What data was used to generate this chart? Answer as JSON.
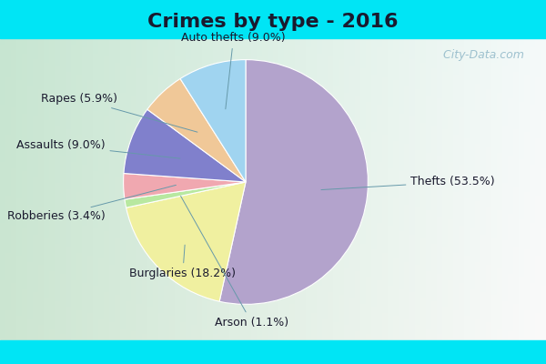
{
  "title": "Crimes by type - 2016",
  "labels": [
    "Thefts",
    "Burglaries",
    "Arson",
    "Robberies",
    "Assaults",
    "Rapes",
    "Auto thefts"
  ],
  "label_pcts": [
    "53.5%",
    "18.2%",
    "1.1%",
    "3.4%",
    "9.0%",
    "5.9%",
    "9.0%"
  ],
  "values": [
    53.5,
    18.2,
    1.1,
    3.4,
    9.0,
    5.9,
    9.0
  ],
  "colors": [
    "#b3a3cc",
    "#f0f0a0",
    "#b8e8a0",
    "#f0a8b0",
    "#8080cc",
    "#f0c898",
    "#a0d4f0"
  ],
  "background_top": "#00e5f5",
  "background_main_tl": "#c8e8d0",
  "background_main_tr": "#e8f4f8",
  "background_main_br": "#f0f8f0",
  "title_fontsize": 16,
  "label_fontsize": 9,
  "watermark": " City-Data.com"
}
